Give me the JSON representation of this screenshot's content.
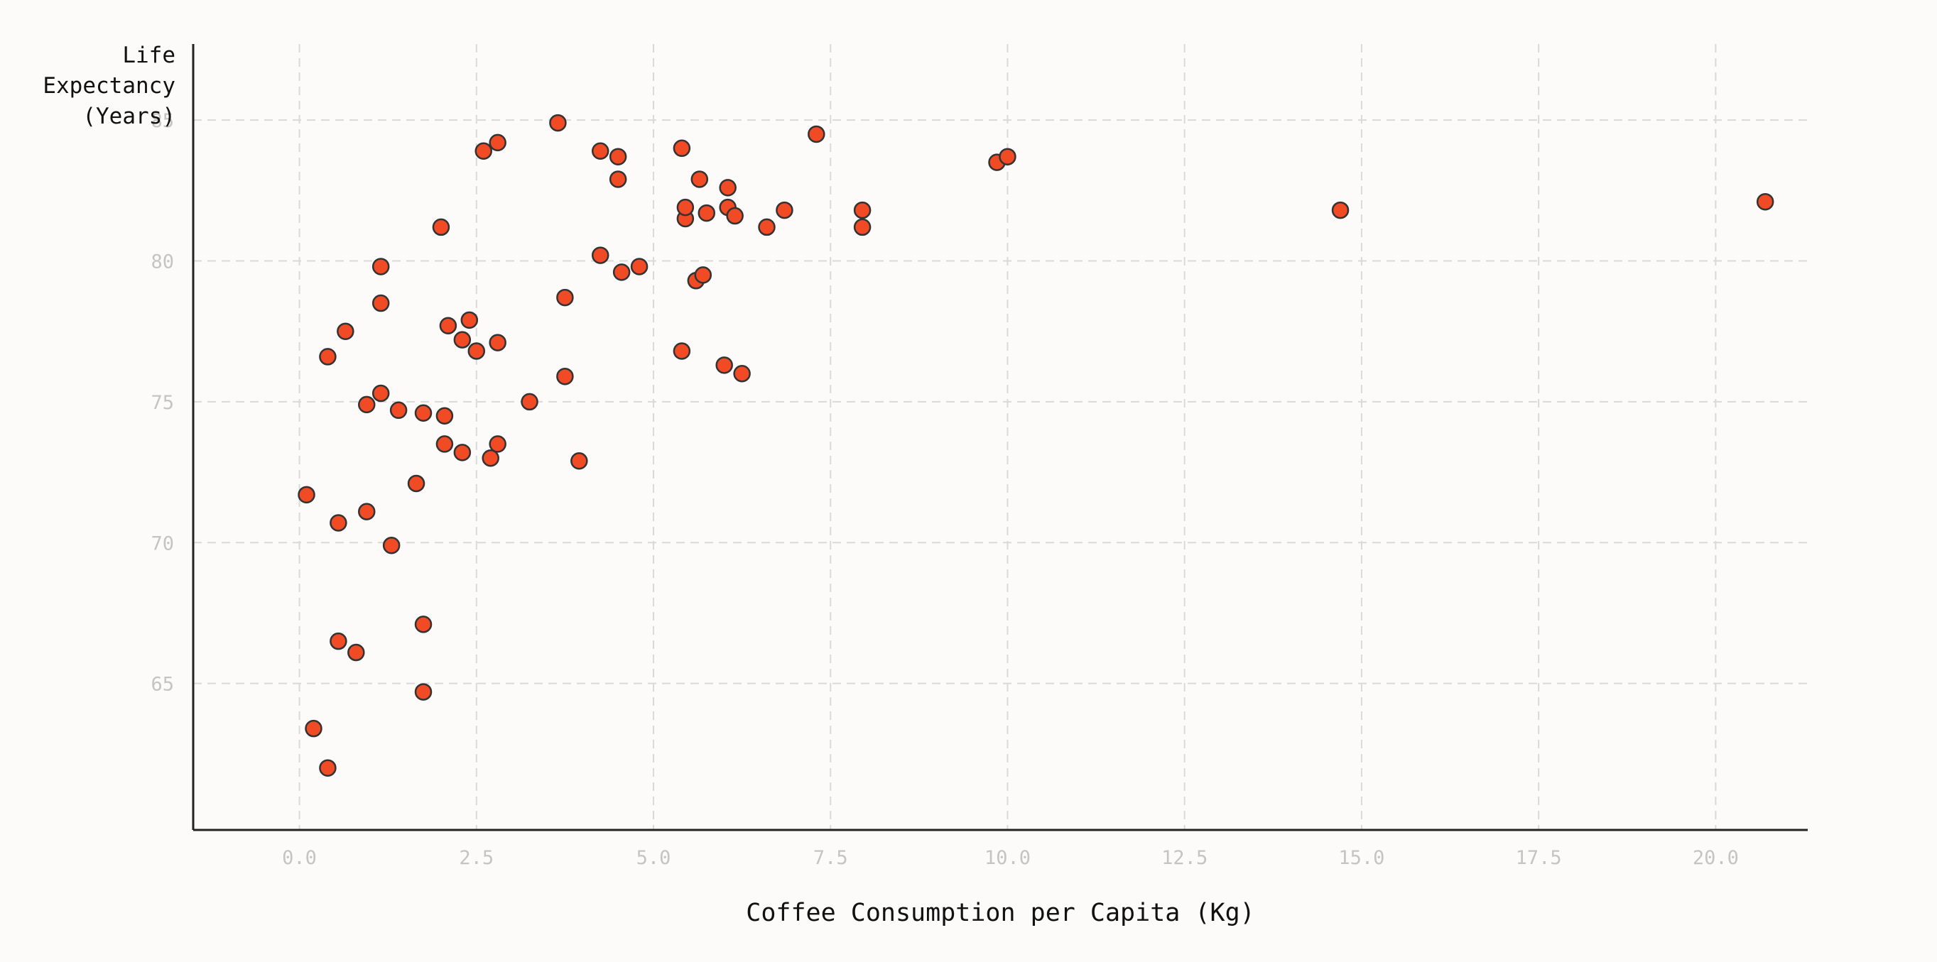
{
  "chart_data": {
    "type": "scatter",
    "title": "",
    "xlabel": "Coffee Consumption per Capita (Kg)",
    "ylabel_lines": [
      "Life",
      "Expectancy",
      "(Years)"
    ],
    "xlim": [
      -1.5,
      21.3
    ],
    "ylim": [
      59.8,
      87.7
    ],
    "x_ticks": [
      0.0,
      2.5,
      5.0,
      7.5,
      10.0,
      12.5,
      15.0,
      17.5,
      20.0
    ],
    "x_tick_labels": [
      "0.0",
      "2.5",
      "5.0",
      "7.5",
      "10.0",
      "12.5",
      "15.0",
      "17.5",
      "20.0"
    ],
    "y_ticks": [
      65,
      70,
      75,
      80,
      85
    ],
    "y_tick_labels": [
      "65",
      "70",
      "75",
      "80",
      "85"
    ],
    "grid": true,
    "marker_color": "#f04b24",
    "marker_edge_color": "#333333",
    "points": [
      {
        "x": 0.1,
        "y": 71.7
      },
      {
        "x": 0.2,
        "y": 63.4
      },
      {
        "x": 0.4,
        "y": 62.0
      },
      {
        "x": 0.4,
        "y": 76.6
      },
      {
        "x": 0.55,
        "y": 70.7
      },
      {
        "x": 0.55,
        "y": 66.5
      },
      {
        "x": 0.65,
        "y": 77.5
      },
      {
        "x": 0.8,
        "y": 66.1
      },
      {
        "x": 0.95,
        "y": 71.1
      },
      {
        "x": 0.95,
        "y": 74.9
      },
      {
        "x": 1.15,
        "y": 75.3
      },
      {
        "x": 1.15,
        "y": 78.5
      },
      {
        "x": 1.15,
        "y": 79.8
      },
      {
        "x": 1.3,
        "y": 69.9
      },
      {
        "x": 1.4,
        "y": 74.7
      },
      {
        "x": 1.65,
        "y": 72.1
      },
      {
        "x": 1.75,
        "y": 67.1
      },
      {
        "x": 1.75,
        "y": 64.7
      },
      {
        "x": 1.75,
        "y": 74.6
      },
      {
        "x": 2.0,
        "y": 81.2
      },
      {
        "x": 2.05,
        "y": 74.5
      },
      {
        "x": 2.05,
        "y": 73.5
      },
      {
        "x": 2.1,
        "y": 77.7
      },
      {
        "x": 2.3,
        "y": 73.2
      },
      {
        "x": 2.3,
        "y": 77.2
      },
      {
        "x": 2.4,
        "y": 77.9
      },
      {
        "x": 2.5,
        "y": 76.8
      },
      {
        "x": 2.6,
        "y": 83.9
      },
      {
        "x": 2.7,
        "y": 73.0
      },
      {
        "x": 2.8,
        "y": 84.2
      },
      {
        "x": 2.8,
        "y": 77.1
      },
      {
        "x": 2.8,
        "y": 73.5
      },
      {
        "x": 3.25,
        "y": 75.0
      },
      {
        "x": 3.65,
        "y": 84.9
      },
      {
        "x": 3.75,
        "y": 78.7
      },
      {
        "x": 3.75,
        "y": 75.9
      },
      {
        "x": 3.95,
        "y": 72.9
      },
      {
        "x": 4.25,
        "y": 83.9
      },
      {
        "x": 4.25,
        "y": 80.2
      },
      {
        "x": 4.5,
        "y": 83.7
      },
      {
        "x": 4.5,
        "y": 82.9
      },
      {
        "x": 4.55,
        "y": 79.6
      },
      {
        "x": 4.8,
        "y": 79.8
      },
      {
        "x": 5.4,
        "y": 84.0
      },
      {
        "x": 5.4,
        "y": 76.8
      },
      {
        "x": 5.45,
        "y": 81.5
      },
      {
        "x": 5.45,
        "y": 81.9
      },
      {
        "x": 5.6,
        "y": 79.3
      },
      {
        "x": 5.65,
        "y": 82.9
      },
      {
        "x": 5.7,
        "y": 79.5
      },
      {
        "x": 5.75,
        "y": 81.7
      },
      {
        "x": 6.0,
        "y": 76.3
      },
      {
        "x": 6.05,
        "y": 82.6
      },
      {
        "x": 6.05,
        "y": 81.9
      },
      {
        "x": 6.15,
        "y": 81.6
      },
      {
        "x": 6.25,
        "y": 76.0
      },
      {
        "x": 6.6,
        "y": 81.2
      },
      {
        "x": 6.85,
        "y": 81.8
      },
      {
        "x": 7.3,
        "y": 84.5
      },
      {
        "x": 7.95,
        "y": 81.8
      },
      {
        "x": 7.95,
        "y": 81.2
      },
      {
        "x": 9.85,
        "y": 83.5
      },
      {
        "x": 10.0,
        "y": 83.7
      },
      {
        "x": 14.7,
        "y": 81.8
      },
      {
        "x": 20.7,
        "y": 82.1
      }
    ]
  }
}
